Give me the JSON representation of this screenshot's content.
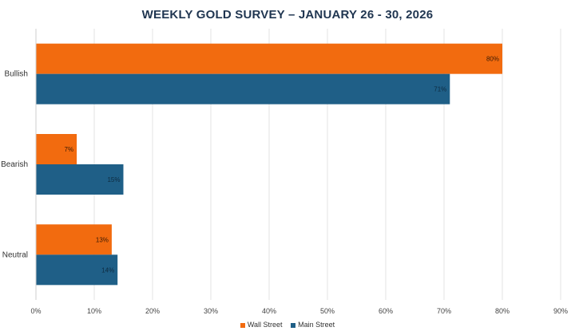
{
  "chart_data": {
    "type": "bar",
    "orientation": "horizontal",
    "title": "WEEKLY GOLD SURVEY – JANUARY 26 - 30, 2026",
    "categories": [
      "Bullish",
      "Bearish",
      "Neutral"
    ],
    "series": [
      {
        "name": "Wall Street",
        "values": [
          80,
          7,
          13
        ],
        "color": "#f26b0f"
      },
      {
        "name": "Main Street",
        "values": [
          71,
          15,
          14
        ],
        "color": "#1f5f87"
      }
    ],
    "data_labels": [
      [
        "80%",
        "7%",
        "13%"
      ],
      [
        "71%",
        "15%",
        "14%"
      ]
    ],
    "xlim": [
      0,
      90
    ],
    "xticks": [
      0,
      10,
      20,
      30,
      40,
      50,
      60,
      70,
      80,
      90
    ],
    "xtick_labels": [
      "0%",
      "10%",
      "20%",
      "30%",
      "40%",
      "50%",
      "60%",
      "70%",
      "80%",
      "90%"
    ],
    "grid": true,
    "legend_position": "bottom"
  }
}
